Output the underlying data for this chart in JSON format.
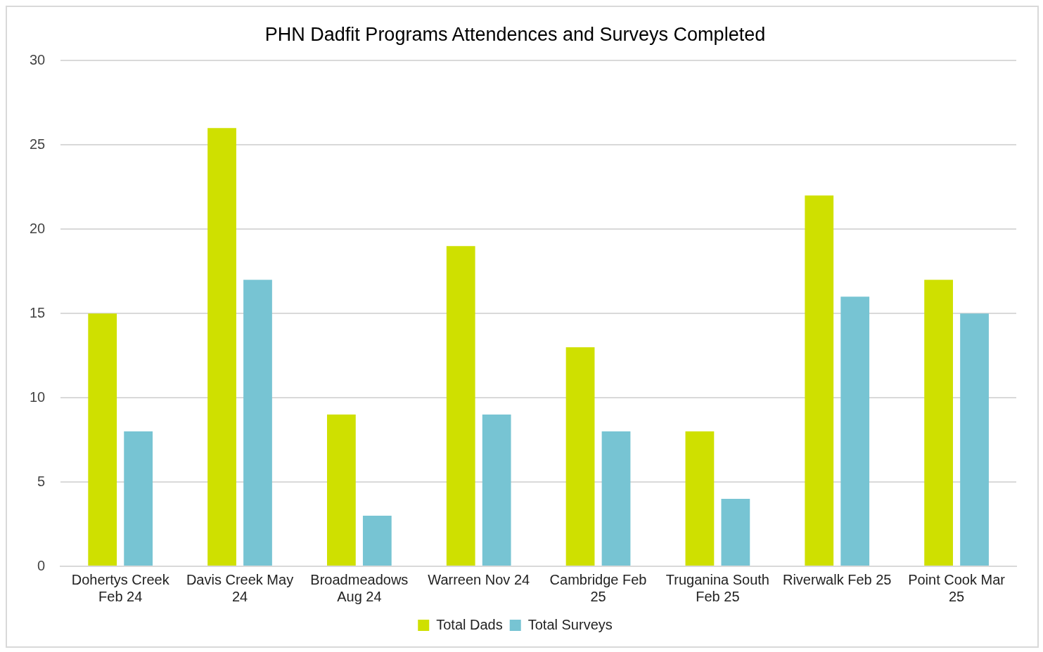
{
  "chart_data": {
    "type": "bar",
    "title": "PHN Dadfit Programs Attendences and Surveys Completed",
    "categories": [
      "Dohertys Creek Feb 24",
      "Davis Creek May 24",
      "Broadmeadows Aug 24",
      "Warreen Nov 24",
      "Cambridge Feb 25",
      "Truganina South Feb 25",
      "Riverwalk Feb 25",
      "Point Cook Mar 25"
    ],
    "series": [
      {
        "name": "Total Dads",
        "color": "#cfe000",
        "values": [
          15,
          26,
          9,
          19,
          13,
          8,
          22,
          17
        ]
      },
      {
        "name": "Total Surveys",
        "color": "#77c4d3",
        "values": [
          8,
          17,
          3,
          9,
          8,
          4,
          16,
          15
        ]
      }
    ],
    "ylim": [
      0,
      30
    ],
    "yticks": [
      0,
      5,
      10,
      15,
      20,
      25,
      30
    ],
    "grid": "y",
    "legend": "bottom"
  }
}
